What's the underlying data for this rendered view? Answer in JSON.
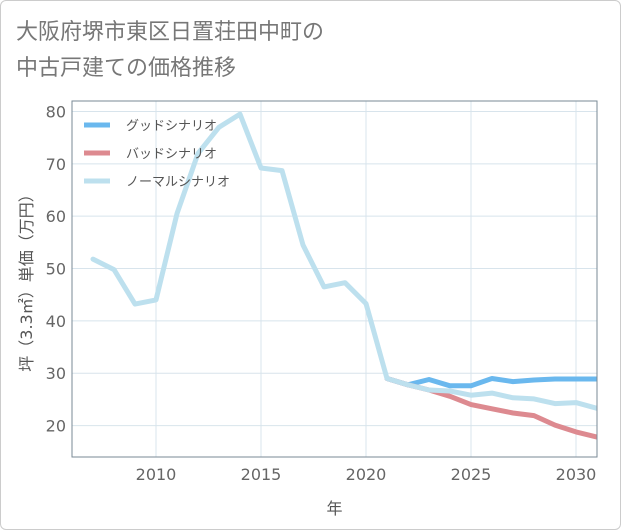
{
  "title": {
    "line1": "大阪府堺市東区日置荘田中町の",
    "line2": "中古戸建ての価格推移"
  },
  "colors": {
    "good": "#6ab8ee",
    "bad": "#dd8a90",
    "normal": "#bde0ee",
    "grid": "#d8e4ec",
    "frame": "#7a8a96"
  },
  "chart_data": {
    "type": "line",
    "title": "大阪府堺市東区日置荘田中町の中古戸建ての価格推移",
    "xlabel": "年",
    "ylabel": "坪（3.3㎡）単価（万円）",
    "xlim": [
      2006,
      2031
    ],
    "ylim": [
      14,
      82
    ],
    "xticks": [
      2010,
      2015,
      2020,
      2025,
      2030
    ],
    "yticks": [
      20,
      30,
      40,
      50,
      60,
      70,
      80
    ],
    "legend_position": "top-left",
    "series": [
      {
        "key": "good",
        "name": "グッドシナリオ",
        "x": [
          2021,
          2022,
          2023,
          2024,
          2025,
          2026,
          2027,
          2028,
          2029,
          2030,
          2031
        ],
        "values": [
          29,
          27.8,
          28.8,
          27.6,
          27.6,
          29,
          28.4,
          28.7,
          28.9,
          28.9,
          28.9
        ]
      },
      {
        "key": "bad",
        "name": "バッドシナリオ",
        "x": [
          2021,
          2022,
          2023,
          2024,
          2025,
          2026,
          2027,
          2028,
          2029,
          2030,
          2031
        ],
        "values": [
          29,
          27.8,
          26.8,
          25.6,
          24,
          23.2,
          22.4,
          21.9,
          20.1,
          18.8,
          17.8
        ]
      },
      {
        "key": "normal",
        "name": "ノーマルシナリオ",
        "x": [
          2007,
          2008,
          2009,
          2010,
          2011,
          2012,
          2013,
          2014,
          2015,
          2016,
          2017,
          2018,
          2019,
          2020,
          2021,
          2022,
          2023,
          2024,
          2025,
          2026,
          2027,
          2028,
          2029,
          2030,
          2031
        ],
        "values": [
          51.8,
          49.8,
          43.2,
          44,
          60.5,
          72,
          77,
          79.5,
          69.2,
          68.7,
          54.5,
          46.5,
          47.3,
          43.3,
          29,
          27.8,
          26.8,
          26.6,
          25.8,
          26.2,
          25.3,
          25.1,
          24.2,
          24.4,
          23.3
        ]
      }
    ]
  }
}
